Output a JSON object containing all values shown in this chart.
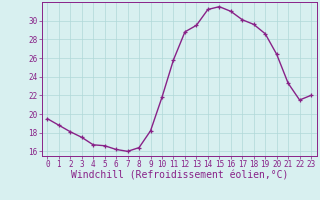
{
  "x": [
    0,
    1,
    2,
    3,
    4,
    5,
    6,
    7,
    8,
    9,
    10,
    11,
    12,
    13,
    14,
    15,
    16,
    17,
    18,
    19,
    20,
    21,
    22,
    23
  ],
  "y": [
    19.5,
    18.8,
    18.1,
    17.5,
    16.7,
    16.6,
    16.2,
    16.0,
    16.4,
    18.2,
    21.8,
    25.8,
    28.8,
    29.5,
    31.2,
    31.5,
    31.0,
    30.1,
    29.6,
    28.6,
    26.4,
    23.3,
    21.5,
    22.0
  ],
  "line_color": "#882288",
  "marker": "+",
  "marker_color": "#882288",
  "bg_color": "#d8f0f0",
  "grid_color": "#b0d8d8",
  "axis_color": "#882288",
  "xlabel": "Windchill (Refroidissement éolien,°C)",
  "xlabel_color": "#882288",
  "ylim": [
    15.5,
    32.0
  ],
  "xlim": [
    -0.5,
    23.5
  ],
  "yticks": [
    16,
    18,
    20,
    22,
    24,
    26,
    28,
    30
  ],
  "xticks": [
    0,
    1,
    2,
    3,
    4,
    5,
    6,
    7,
    8,
    9,
    10,
    11,
    12,
    13,
    14,
    15,
    16,
    17,
    18,
    19,
    20,
    21,
    22,
    23
  ],
  "tick_label_color": "#882288",
  "tick_fontsize": 5.5,
  "xlabel_fontsize": 7.0,
  "linewidth": 1.0,
  "markersize": 3.5,
  "markeredgewidth": 0.9
}
